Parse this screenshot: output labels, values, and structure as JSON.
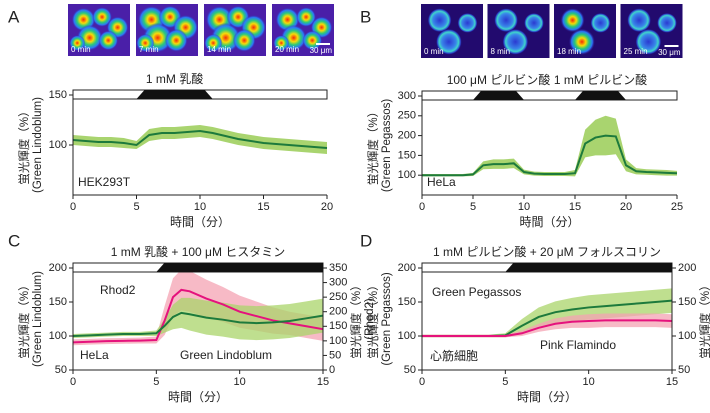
{
  "chart_data": [
    {
      "type": "line",
      "panel": "A",
      "image_labels": [
        "0 min",
        "7 min",
        "14 min",
        "20 min"
      ],
      "scale_bar": "30 μm",
      "stimuli": [
        {
          "label": "1 mM 乳酸",
          "start": 5,
          "end": 11
        }
      ],
      "xlabel": "時間（分）",
      "ylabel": "蛍光輝度（%）",
      "ylabel_sub": "(Green Lindoblum)",
      "annotation": "HEK293T",
      "xlim": [
        0,
        20
      ],
      "xticks": [
        0,
        5,
        10,
        15,
        20
      ],
      "ylim": [
        50,
        150
      ],
      "yticks": [
        100,
        150
      ],
      "x": [
        0,
        1,
        2,
        3,
        4,
        5,
        6,
        7,
        8,
        9,
        10,
        11,
        12,
        13,
        14,
        15,
        16,
        17,
        18,
        19,
        20
      ],
      "series": [
        {
          "color": "#1d7a3c",
          "band_color": "#8cc63f",
          "values": [
            105,
            104,
            103,
            103,
            102,
            100,
            110,
            112,
            112,
            113,
            114,
            112,
            109,
            106,
            104,
            102,
            101,
            100,
            99,
            98,
            97
          ],
          "error": [
            5,
            5,
            5,
            5,
            5,
            4,
            6,
            6,
            6,
            6,
            6,
            6,
            6,
            6,
            6,
            6,
            6,
            6,
            6,
            6,
            6
          ]
        }
      ]
    },
    {
      "type": "line",
      "panel": "B",
      "image_labels": [
        "0 min",
        "8 min",
        "18 min",
        "25 min"
      ],
      "scale_bar": "30 μm",
      "stimuli": [
        {
          "label": "100 μM ピルビン酸",
          "start": 5,
          "end": 10
        },
        {
          "label": "1 mM ピルビン酸",
          "start": 15,
          "end": 20
        }
      ],
      "xlabel": "時間（分）",
      "ylabel": "蛍光輝度（%）",
      "ylabel_sub": "(Green Pegassos)",
      "annotation": "HeLa",
      "xlim": [
        0,
        25
      ],
      "xticks": [
        0,
        5,
        10,
        15,
        20,
        25
      ],
      "ylim": [
        50,
        300
      ],
      "yticks": [
        100,
        150,
        200,
        250,
        300
      ],
      "x": [
        0,
        1,
        2,
        3,
        4,
        5,
        6,
        7,
        8,
        9,
        10,
        11,
        12,
        13,
        14,
        15,
        16,
        17,
        18,
        19,
        20,
        21,
        22,
        23,
        24,
        25
      ],
      "series": [
        {
          "color": "#1d7a3c",
          "band_color": "#8cc63f",
          "values": [
            100,
            100,
            100,
            100,
            100,
            102,
            125,
            128,
            128,
            130,
            108,
            104,
            103,
            103,
            103,
            105,
            180,
            195,
            200,
            198,
            125,
            110,
            108,
            107,
            106,
            105
          ],
          "error": [
            3,
            3,
            3,
            3,
            3,
            4,
            10,
            12,
            12,
            12,
            6,
            5,
            5,
            5,
            5,
            8,
            35,
            45,
            50,
            45,
            15,
            8,
            7,
            7,
            7,
            6
          ]
        }
      ]
    },
    {
      "type": "line",
      "panel": "C",
      "stimuli": [
        {
          "label": "1 mM 乳酸 + 100 μM ヒスタミン",
          "start": 5,
          "end": 15
        }
      ],
      "xlabel": "時間（分）",
      "ylabel": "蛍光輝度（%）",
      "ylabel_sub": "(Green Lindoblum)",
      "y2label": "蛍光輝度（%）",
      "y2label_sub": "(Rhod2)",
      "annotation": "HeLa",
      "xlim": [
        0,
        15
      ],
      "xticks": [
        0,
        5,
        10,
        15
      ],
      "ylim": [
        50,
        200
      ],
      "yticks": [
        50,
        100,
        150,
        200
      ],
      "y2lim": [
        0,
        350
      ],
      "y2ticks": [
        0,
        50,
        100,
        150,
        200,
        250,
        300,
        350
      ],
      "x": [
        0,
        1,
        2,
        3,
        4,
        5,
        5.5,
        6,
        6.5,
        7,
        8,
        9,
        10,
        11,
        12,
        13,
        14,
        15
      ],
      "series": [
        {
          "name": "Rhod2",
          "axis": "y2",
          "color": "#e5127d",
          "band_color": "#f4a3b3",
          "values": [
            95,
            97,
            99,
            100,
            101,
            103,
            170,
            250,
            275,
            270,
            245,
            225,
            200,
            185,
            170,
            160,
            150,
            140
          ],
          "error": [
            10,
            10,
            10,
            10,
            10,
            12,
            50,
            65,
            70,
            70,
            65,
            60,
            55,
            50,
            45,
            40,
            40,
            40
          ]
        },
        {
          "name": "Green Lindoblum",
          "color": "#1d7a3c",
          "band_color": "#a9d46a",
          "values": [
            100,
            101,
            102,
            103,
            103,
            104,
            115,
            128,
            134,
            132,
            127,
            124,
            120,
            119,
            120,
            122,
            126,
            130
          ],
          "error": [
            3,
            3,
            3,
            3,
            3,
            4,
            10,
            18,
            22,
            24,
            25,
            25,
            25,
            25,
            25,
            25,
            25,
            25
          ]
        }
      ]
    },
    {
      "type": "line",
      "panel": "D",
      "stimuli": [
        {
          "label": "1 mM ピルビン酸 + 20 μM フォルスコリン",
          "start": 5,
          "end": 15
        }
      ],
      "xlabel": "時間（分）",
      "ylabel": "蛍光輝度（%）",
      "ylabel_sub": "(Green Pegassos)",
      "y2label": "蛍光輝度（%）",
      "y2label_sub": "(Pink Flamindo)",
      "annotation": "心筋細胞",
      "xlim": [
        0,
        15
      ],
      "xticks": [
        0,
        5,
        10,
        15
      ],
      "ylim": [
        50,
        200
      ],
      "yticks": [
        50,
        100,
        150,
        200
      ],
      "y2lim": [
        50,
        200
      ],
      "y2ticks": [
        50,
        100,
        150,
        200
      ],
      "x": [
        0,
        1,
        2,
        3,
        4,
        5,
        6,
        7,
        8,
        9,
        10,
        11,
        12,
        13,
        14,
        15
      ],
      "series": [
        {
          "name": "Green Pegassos",
          "color": "#1d7a3c",
          "band_color": "#a9d46a",
          "values": [
            100,
            100,
            100,
            100,
            100,
            101,
            115,
            128,
            135,
            139,
            142,
            144,
            146,
            148,
            150,
            152
          ],
          "error": [
            2,
            2,
            2,
            2,
            2,
            3,
            10,
            14,
            16,
            17,
            18,
            18,
            18,
            18,
            18,
            18
          ]
        },
        {
          "name": "Pink Flamindo",
          "axis": "y2",
          "color": "#e5127d",
          "band_color": "#f4a3b3",
          "values": [
            100,
            100,
            100,
            100,
            100,
            100,
            104,
            112,
            118,
            121,
            122,
            123,
            123,
            123,
            123,
            122
          ],
          "error": [
            2,
            2,
            2,
            2,
            2,
            2,
            4,
            6,
            8,
            9,
            10,
            10,
            10,
            10,
            10,
            10
          ]
        }
      ]
    }
  ]
}
